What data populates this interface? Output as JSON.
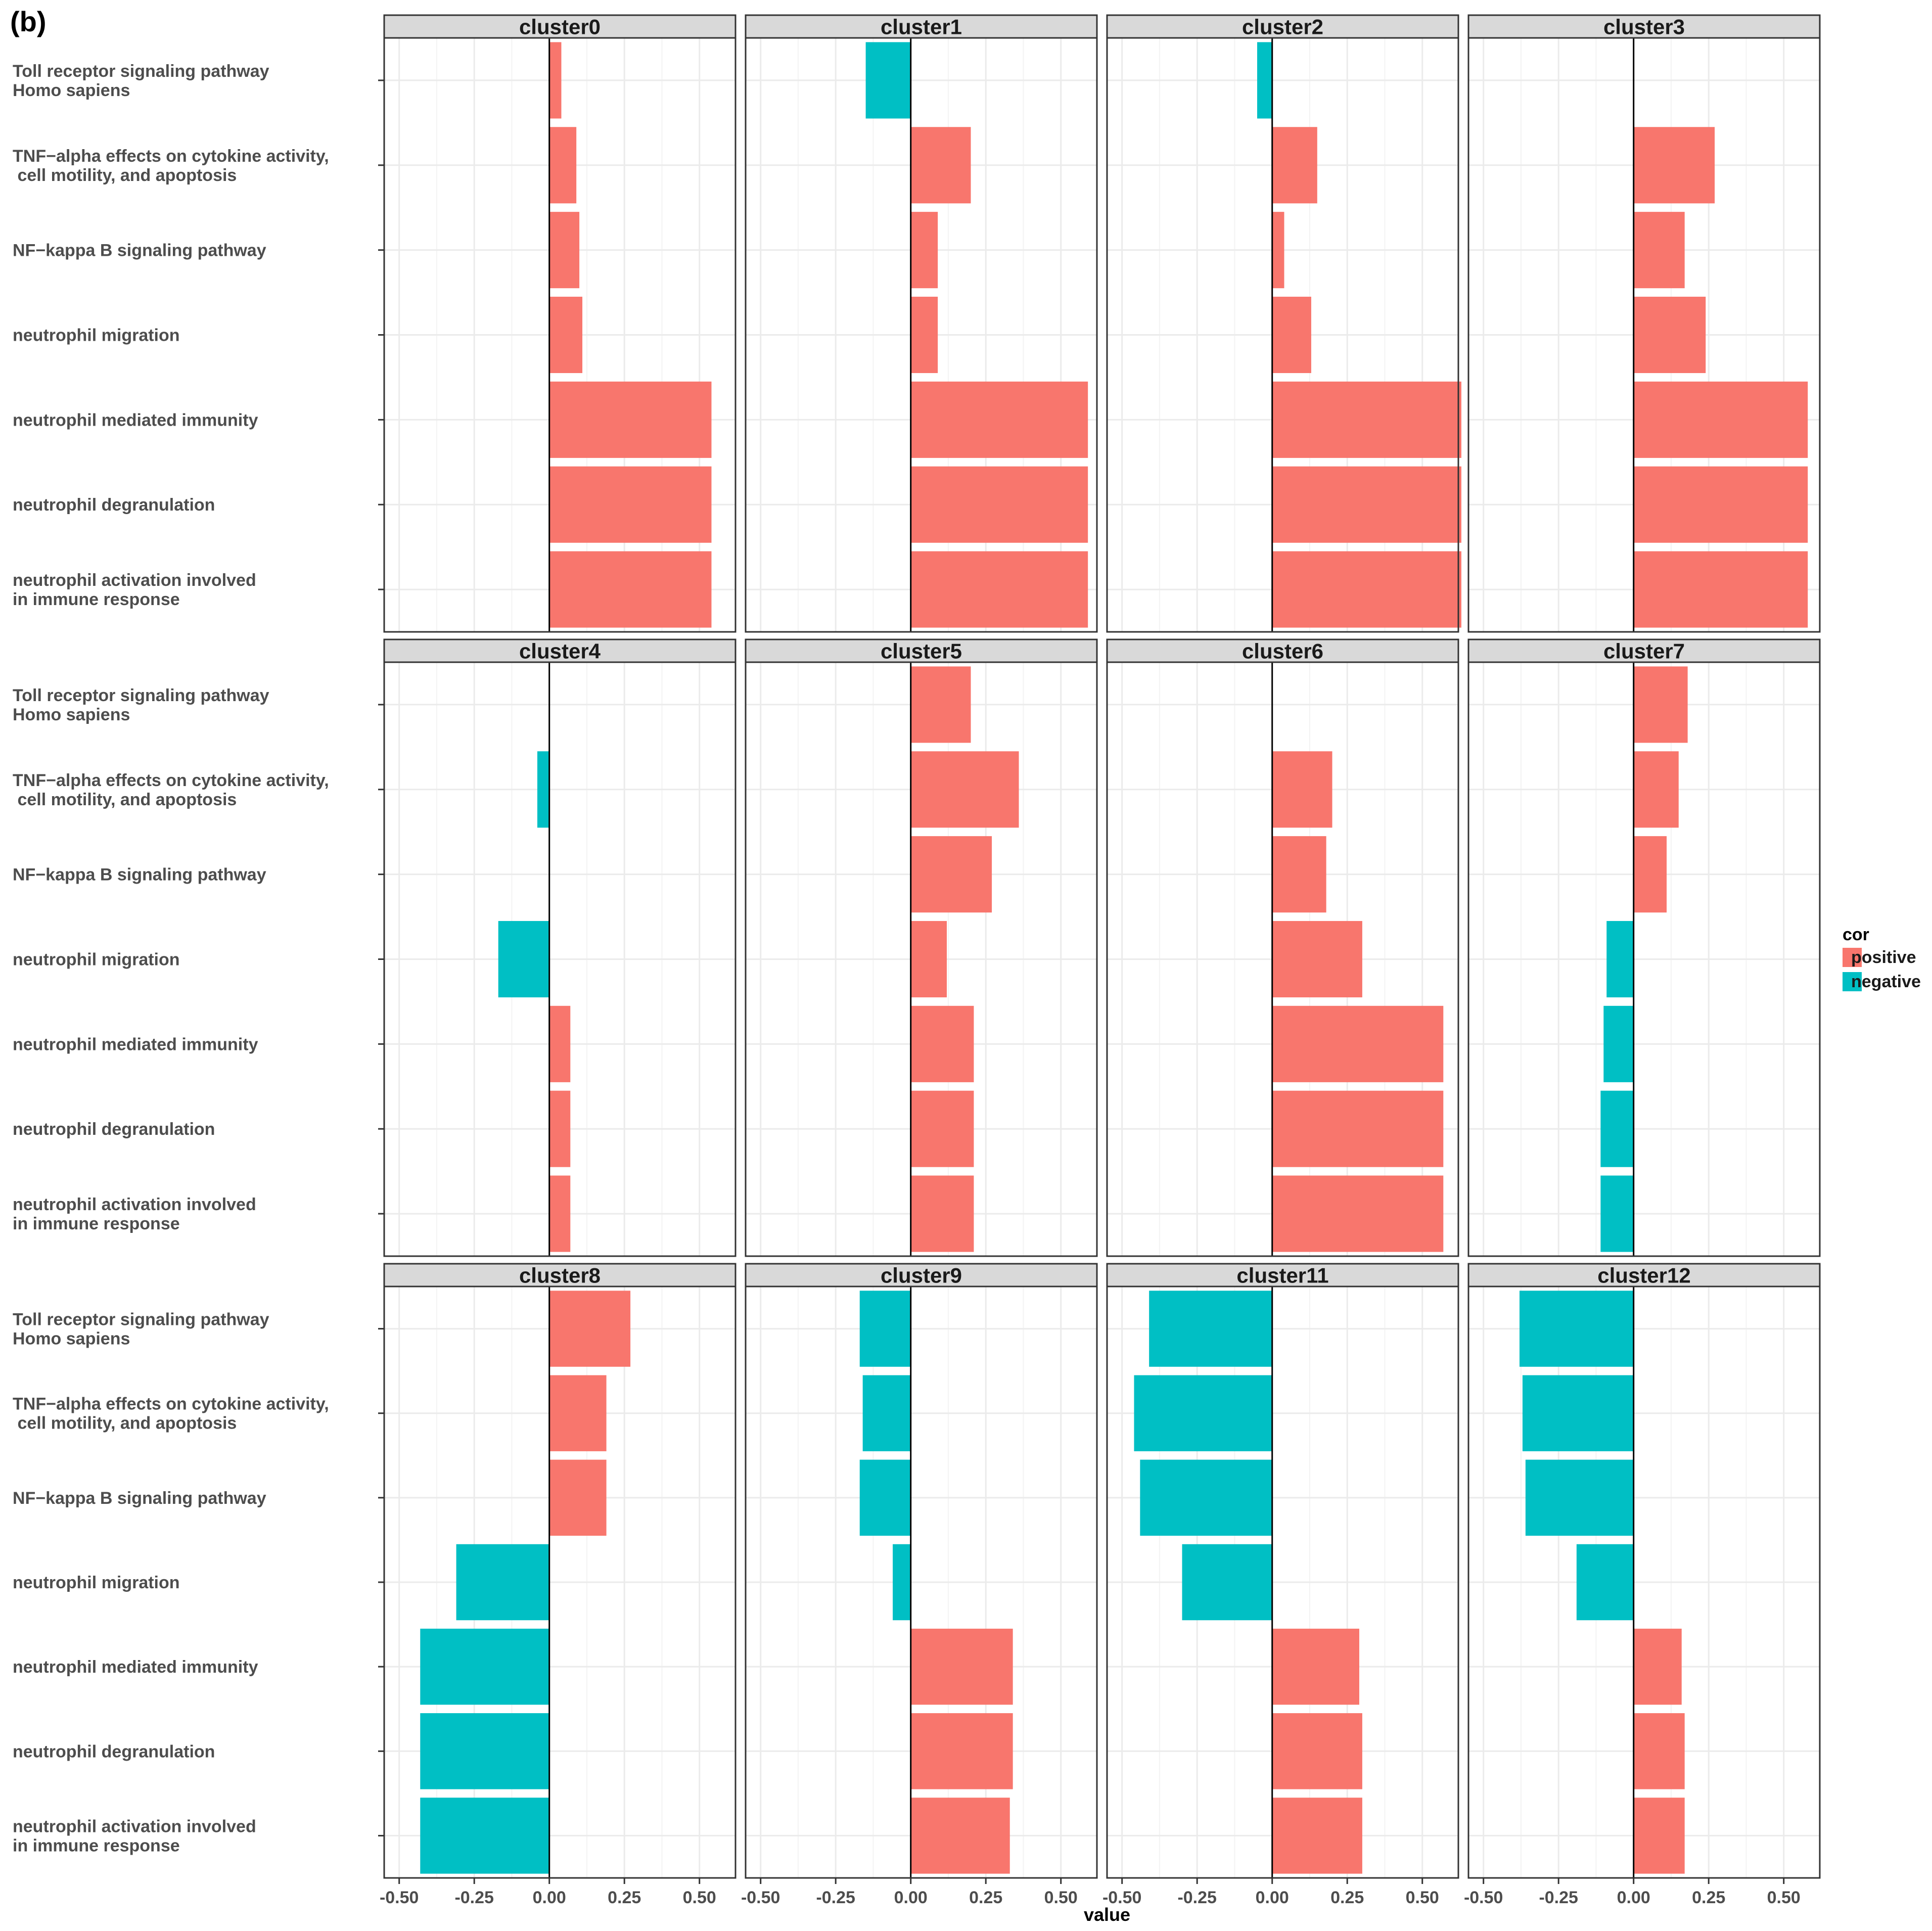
{
  "chart_data": {
    "type": "bar",
    "orientation": "horizontal",
    "panel_label": "(b)",
    "xlabel": "value",
    "ylabel": "",
    "xlim": [
      -0.55,
      0.62
    ],
    "x_ticks": [
      "-0.50",
      "-0.25",
      "0.00",
      "0.25",
      "0.50"
    ],
    "x_tick_values": [
      -0.5,
      -0.25,
      0,
      0.25,
      0.5
    ],
    "grid": true,
    "legend": {
      "title": "cor",
      "position": "right",
      "items": [
        {
          "label": "positive",
          "color": "#F8766D"
        },
        {
          "label": "negative",
          "color": "#00BFC4"
        }
      ]
    },
    "categories": [
      "Toll receptor signaling pathway\nHomo sapiens",
      "TNF−alpha effects on cytokine activity,\n cell motility, and apoptosis",
      "NF−kappa B signaling pathway",
      "neutrophil migration",
      "neutrophil mediated immunity",
      "neutrophil degranulation",
      "neutrophil activation involved\nin immune response"
    ],
    "series": [
      {
        "name": "cluster0",
        "values": [
          0.04,
          0.09,
          0.1,
          0.11,
          0.54,
          0.54,
          0.54
        ]
      },
      {
        "name": "cluster1",
        "values": [
          -0.15,
          0.2,
          0.09,
          0.09,
          0.59,
          0.59,
          0.59
        ]
      },
      {
        "name": "cluster2",
        "values": [
          -0.05,
          0.15,
          0.04,
          0.13,
          0.63,
          0.63,
          0.63
        ]
      },
      {
        "name": "cluster3",
        "values": [
          0,
          0.27,
          0.17,
          0.24,
          0.58,
          0.58,
          0.58
        ]
      },
      {
        "name": "cluster4",
        "values": [
          0,
          -0.04,
          0,
          -0.17,
          0.07,
          0.07,
          0.07
        ]
      },
      {
        "name": "cluster5",
        "values": [
          0.2,
          0.36,
          0.27,
          0.12,
          0.21,
          0.21,
          0.21
        ]
      },
      {
        "name": "cluster6",
        "values": [
          0,
          0.2,
          0.18,
          0.3,
          0.57,
          0.57,
          0.57
        ]
      },
      {
        "name": "cluster7",
        "values": [
          0.18,
          0.15,
          0.11,
          -0.09,
          -0.1,
          -0.11,
          -0.11
        ]
      },
      {
        "name": "cluster8",
        "values": [
          0.27,
          0.19,
          0.19,
          -0.31,
          -0.43,
          -0.43,
          -0.43
        ]
      },
      {
        "name": "cluster9",
        "values": [
          -0.17,
          -0.16,
          -0.17,
          -0.06,
          0.34,
          0.34,
          0.33
        ]
      },
      {
        "name": "cluster11",
        "values": [
          -0.41,
          -0.46,
          -0.44,
          -0.3,
          0.29,
          0.3,
          0.3
        ]
      },
      {
        "name": "cluster12",
        "values": [
          -0.38,
          -0.37,
          -0.36,
          -0.19,
          0.16,
          0.17,
          0.17
        ]
      }
    ]
  }
}
